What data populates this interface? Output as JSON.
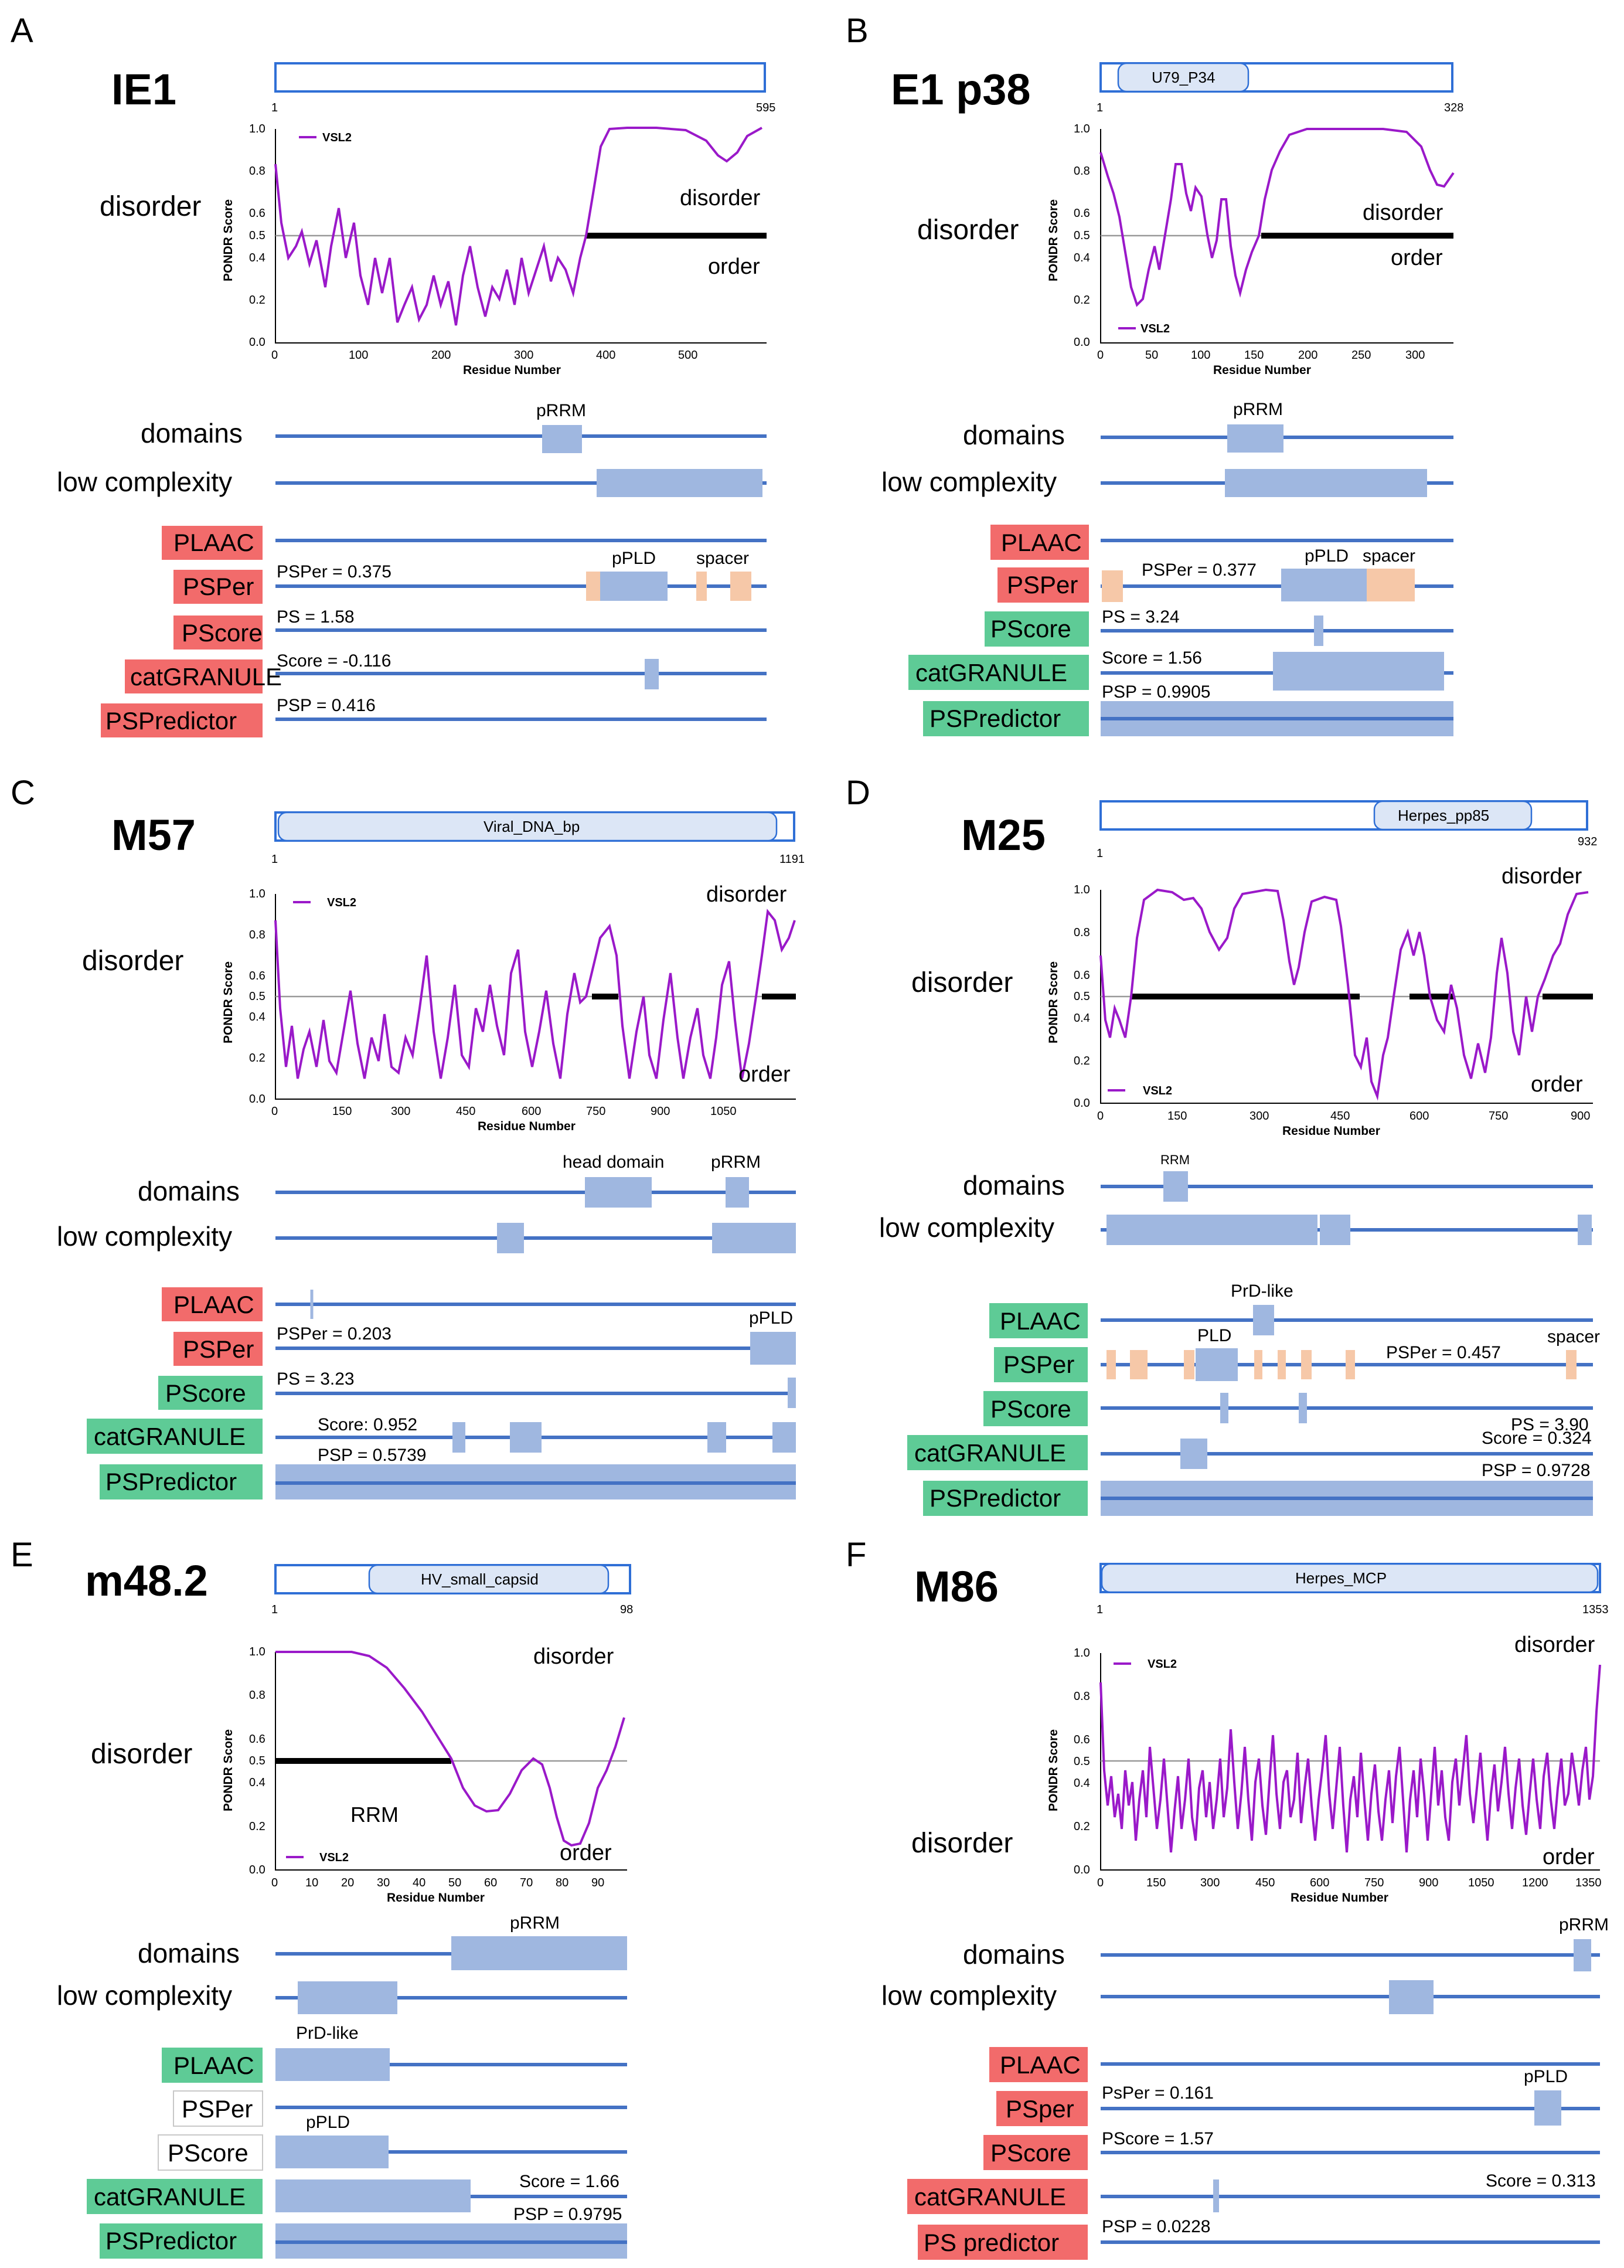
{
  "figure": {
    "panels": [
      {
        "letter": "A",
        "protein": "IE1",
        "domain": "",
        "len_label": "595",
        "start_label": "1",
        "left_label": "disorder",
        "upper_label": "disorder",
        "lower_label": "order",
        "legend": "VSL2",
        "y_axis_title": "PONDR Score",
        "x_axis_title": "Residue Number",
        "y_ticks": [
          "1.0",
          "0.8",
          "0.6",
          "0.5",
          "0.4",
          "0.2",
          "0.0"
        ],
        "x_ticks": [
          "0",
          "100",
          "200",
          "300",
          "400",
          "500"
        ],
        "domain_labels": [
          "pRRM"
        ],
        "lc_label": "low complexity",
        "domains_label": "domains",
        "tags": [
          "PLAAC",
          "PSPer",
          "PScore",
          "catGRANULE",
          "PSPredictor"
        ],
        "tag_colors": [
          "red",
          "red",
          "red",
          "red",
          "red"
        ],
        "values": [
          "",
          "PSPer = 0.375",
          "PS = 1.58",
          "Score = -0.116",
          "PSP = 0.416"
        ],
        "annotations": [
          "pPLD",
          "spacer"
        ]
      },
      {
        "letter": "B",
        "protein": "E1 p38",
        "domain": "U79_P34",
        "len_label": "328",
        "start_label": "1",
        "left_label": "disorder",
        "upper_label": "disorder",
        "lower_label": "order",
        "legend": "VSL2",
        "y_axis_title": "PONDR Score",
        "x_axis_title": "Residue Number",
        "y_ticks": [
          "1.0",
          "0.8",
          "0.6",
          "0.5",
          "0.4",
          "0.2",
          "0.0"
        ],
        "x_ticks": [
          "0",
          "50",
          "100",
          "150",
          "200",
          "250",
          "300"
        ],
        "domain_labels": [
          "pRRM"
        ],
        "lc_label": "low complexity",
        "domains_label": "domains",
        "tags": [
          "PLAAC",
          "PSPer",
          "PScore",
          "catGRANULE",
          "PSPredictor"
        ],
        "tag_colors": [
          "red",
          "red",
          "green",
          "green",
          "green"
        ],
        "values": [
          "",
          "PSPer = 0.377",
          "PS = 3.24",
          "Score = 1.56",
          "PSP = 0.9905"
        ],
        "annotations": [
          "pPLD",
          "spacer"
        ]
      },
      {
        "letter": "C",
        "protein": "M57",
        "domain": "Viral_DNA_bp",
        "len_label": "1191",
        "start_label": "1",
        "left_label": "disorder",
        "upper_label": "disorder",
        "lower_label": "order",
        "legend": "VSL2",
        "y_axis_title": "PONDR Score",
        "x_axis_title": "Residue Number",
        "y_ticks": [
          "1.0",
          "0.8",
          "0.6",
          "0.5",
          "0.4",
          "0.2",
          "0.0"
        ],
        "x_ticks": [
          "0",
          "150",
          "300",
          "450",
          "600",
          "750",
          "900",
          "1050"
        ],
        "domain_labels": [
          "head domain",
          "pRRM"
        ],
        "lc_label": "low complexity",
        "domains_label": "domains",
        "tags": [
          "PLAAC",
          "PSPer",
          "PScore",
          "catGRANULE",
          "PSPredictor"
        ],
        "tag_colors": [
          "red",
          "red",
          "green",
          "green",
          "green"
        ],
        "values": [
          "",
          "PSPer = 0.203",
          "PS = 3.23",
          "Score: 0.952",
          "PSP = 0.5739"
        ],
        "annotations": [
          "pPLD"
        ]
      },
      {
        "letter": "D",
        "protein": "M25",
        "domain": "Herpes_pp85",
        "len_label": "932",
        "start_label": "1",
        "left_label": "disorder",
        "upper_label": "disorder",
        "lower_label": "order",
        "legend": "VSL2",
        "y_axis_title": "PONDR Score",
        "x_axis_title": "Residue Number",
        "y_ticks": [
          "1.0",
          "0.8",
          "0.6",
          "0.5",
          "0.4",
          "0.2",
          "0.0"
        ],
        "x_ticks": [
          "0",
          "150",
          "300",
          "450",
          "600",
          "750",
          "900"
        ],
        "domain_labels": [
          "RRM"
        ],
        "lc_label": "low complexity",
        "domains_label": "domains",
        "tags": [
          "PLAAC",
          "PSPer",
          "PScore",
          "catGRANULE",
          "PSPredictor"
        ],
        "tag_colors": [
          "green",
          "green",
          "green",
          "green",
          "green"
        ],
        "values": [
          "",
          "PSPer = 0.457",
          "PS = 3.90",
          "Score = 0.324",
          "PSP = 0.9728"
        ],
        "annotations": [
          "PrD-like",
          "PLD",
          "spacer"
        ]
      },
      {
        "letter": "E",
        "protein": "m48.2",
        "domain": "HV_small_capsid",
        "len_label": "98",
        "start_label": "1",
        "left_label": "disorder",
        "upper_label": "disorder",
        "lower_label": "order",
        "legend": "VSL2",
        "y_axis_title": "PONDR Score",
        "x_axis_title": "Residue Number",
        "y_ticks": [
          "1.0",
          "0.8",
          "0.6",
          "0.5",
          "0.4",
          "0.2",
          "0.0"
        ],
        "x_ticks": [
          "0",
          "10",
          "20",
          "30",
          "40",
          "50",
          "60",
          "70",
          "80",
          "90"
        ],
        "domain_labels": [
          "pRRM"
        ],
        "lc_label": "low complexity",
        "domains_label": "domains",
        "tags": [
          "PLAAC",
          "PSPer",
          "PScore",
          "catGRANULE",
          "PSPredictor"
        ],
        "tag_colors": [
          "green",
          "white",
          "white",
          "green",
          "green"
        ],
        "values": [
          "",
          "",
          "",
          "Score = 1.66",
          "PSP = 0.9795"
        ],
        "annotations": [
          "PrD-like",
          "pPLD",
          "RRM"
        ]
      },
      {
        "letter": "F",
        "protein": "M86",
        "domain": "Herpes_MCP",
        "len_label": "1353",
        "start_label": "1",
        "left_label": "disorder",
        "upper_label": "disorder",
        "lower_label": "order",
        "legend": "VSL2",
        "y_axis_title": "PONDR Score",
        "x_axis_title": "Residue Number",
        "y_ticks": [
          "1.0",
          "0.8",
          "0.6",
          "0.5",
          "0.4",
          "0.2",
          "0.0"
        ],
        "x_ticks": [
          "0",
          "150",
          "300",
          "450",
          "600",
          "750",
          "900",
          "1050",
          "1200",
          "1350"
        ],
        "domain_labels": [
          "pRRM"
        ],
        "lc_label": "low complexity",
        "domains_label": "domains",
        "tags": [
          "PLAAC",
          "PSper",
          "PScore",
          "catGRANULE",
          "PS predictor"
        ],
        "tag_colors": [
          "red",
          "red",
          "red",
          "red",
          "red"
        ],
        "values": [
          "",
          "PsPer = 0.161",
          "PScore = 1.57",
          "Score = 0.313",
          "PSP = 0.0228"
        ],
        "annotations": [
          "pPLD"
        ]
      }
    ]
  },
  "colors": {
    "curve": "#9a19c9",
    "tag_red": "#f26b6b",
    "tag_green": "#5ecb96",
    "bar": "#4472c4",
    "box": "#9fb7e0",
    "peach": "#f6c8a8"
  }
}
